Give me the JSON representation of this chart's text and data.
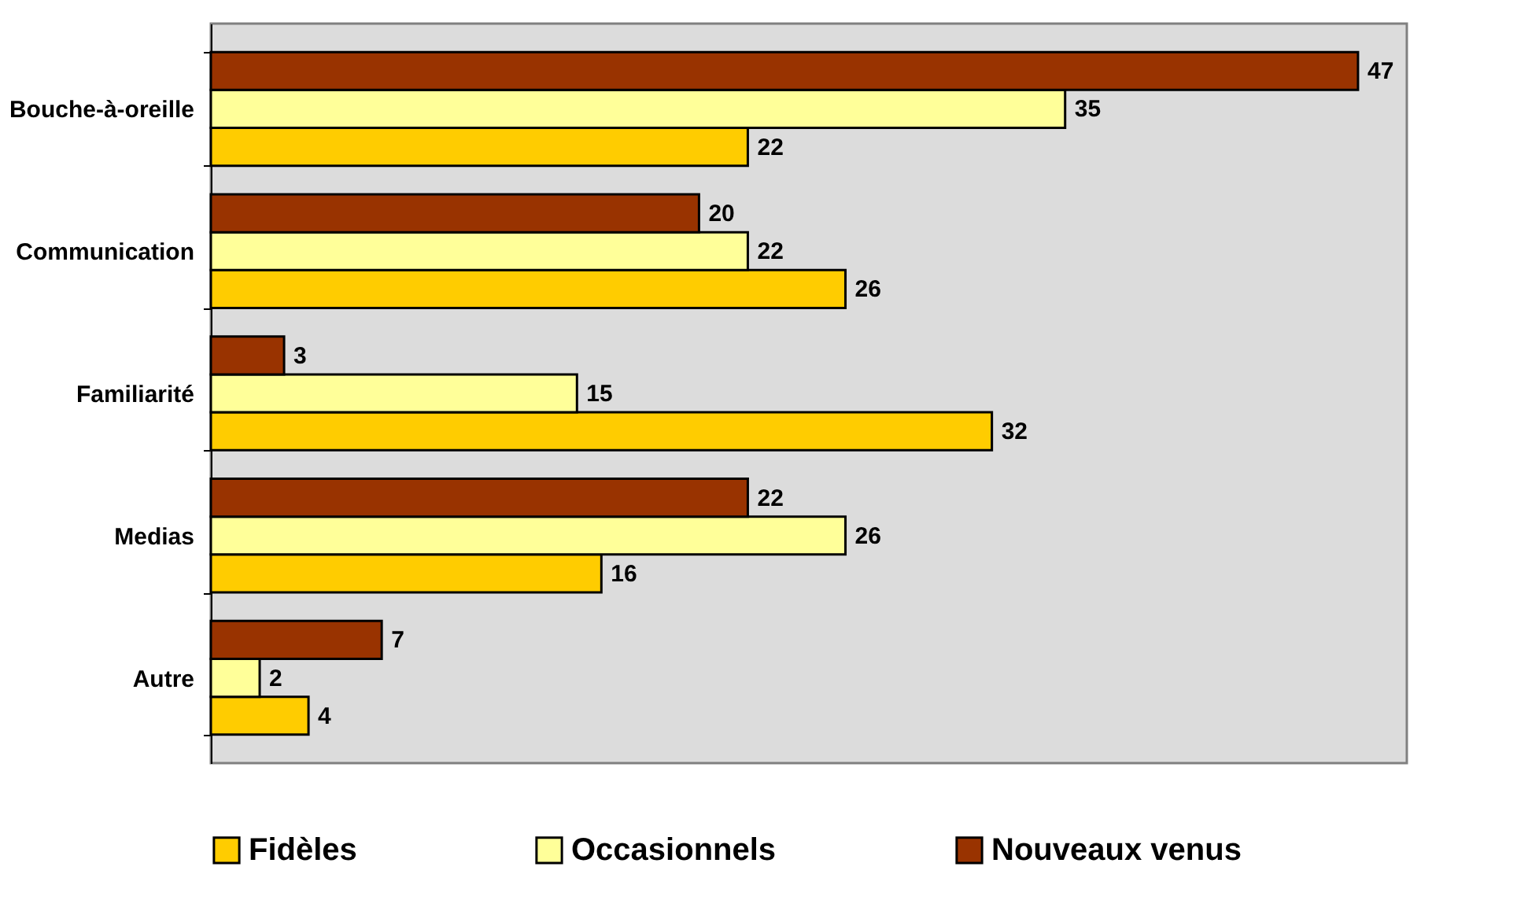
{
  "chart_data": {
    "type": "bar",
    "orientation": "horizontal",
    "categories": [
      "Bouche-à-oreille",
      "Communication",
      "Familiarité",
      "Medias",
      "Autre"
    ],
    "series": [
      {
        "name": "Fidèles",
        "color": "#ffcc00",
        "values": [
          22,
          26,
          32,
          16,
          4
        ]
      },
      {
        "name": "Occasionnels",
        "color": "#ffff99",
        "values": [
          35,
          22,
          15,
          26,
          2
        ]
      },
      {
        "name": "Nouveaux venus",
        "color": "#993300",
        "values": [
          47,
          20,
          3,
          22,
          7
        ]
      }
    ],
    "xlim": [
      0,
      49
    ],
    "data_labels": true,
    "tick_labels": "y",
    "legend": "bottom"
  }
}
